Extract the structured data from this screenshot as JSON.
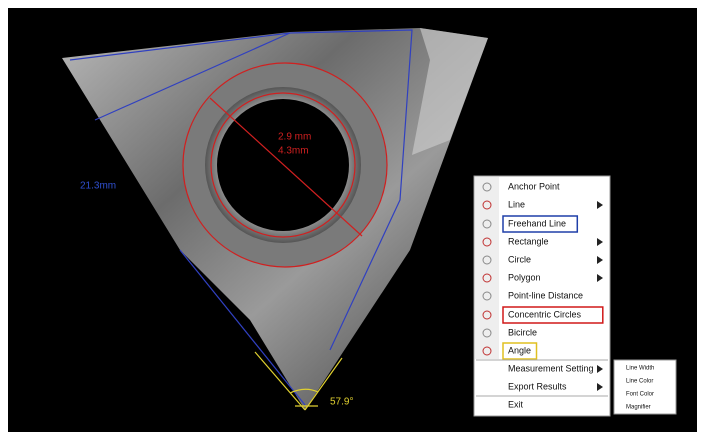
{
  "measurements": {
    "inner_diameter": "2.9 mm",
    "outer_diameter": "4.3mm",
    "edge_length": "21.3mm",
    "angle": "57.9°"
  },
  "menu": {
    "items": [
      {
        "label": "Anchor Point",
        "submenu": false
      },
      {
        "label": "Line",
        "submenu": true
      },
      {
        "label": "Freehand Line",
        "submenu": false,
        "highlight": "#1f3fa8"
      },
      {
        "label": "Rectangle",
        "submenu": true
      },
      {
        "label": "Circle",
        "submenu": true
      },
      {
        "label": "Polygon",
        "submenu": true
      },
      {
        "label": "Point-line Distance",
        "submenu": false
      },
      {
        "label": "Concentric Circles",
        "submenu": false,
        "highlight": "#d01818"
      },
      {
        "label": "Bicircle",
        "submenu": false
      },
      {
        "label": "Angle",
        "submenu": false,
        "highlight": "#e0c020"
      },
      {
        "label": "Measurement Setting",
        "submenu": true
      },
      {
        "label": "Export Results",
        "submenu": true
      },
      {
        "label": "Exit",
        "submenu": false
      }
    ]
  },
  "submenu": {
    "items": [
      "Line Width",
      "Line Color",
      "Font Color",
      "Magnifier"
    ]
  }
}
